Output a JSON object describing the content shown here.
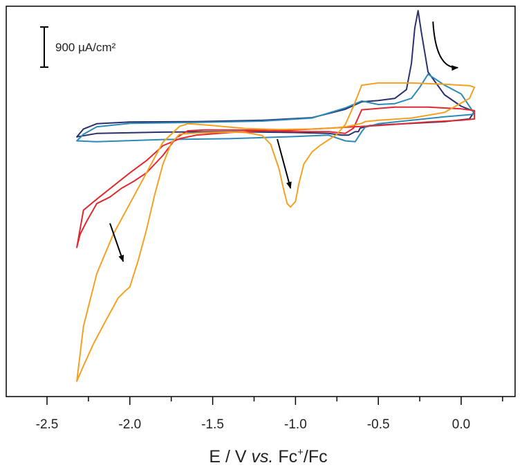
{
  "chart_data": {
    "type": "line",
    "title": "",
    "xlabel_parts": [
      "E / V ",
      "vs.",
      " Fc",
      "+",
      "/Fc"
    ],
    "ylabel": "",
    "xlim": [
      -2.5,
      0.1
    ],
    "x_ticks": [
      -2.5,
      -2.0,
      -1.5,
      -1.0,
      -0.5,
      0.0
    ],
    "x_tick_labels": [
      "-2.5",
      "-2.0",
      "-1.5",
      "-1.0",
      "-0.5",
      "0.0"
    ],
    "y_unit": "µA/cm²",
    "ylim": [
      -6100,
      2800
    ],
    "grid": false,
    "scale_bar": {
      "value": 900,
      "unit": "µA/cm²",
      "label": "900 µA/cm²"
    },
    "series": [
      {
        "color": "#2b2f6e",
        "x": [
          -2.32,
          -2.28,
          -2.2,
          -2.0,
          -1.6,
          -1.2,
          -0.9,
          -0.7,
          -0.6,
          -0.5,
          -0.4,
          -0.33,
          -0.3,
          -0.28,
          -0.26,
          -0.24,
          -0.2,
          -0.1,
          0.0,
          0.08,
          0.05,
          -0.1,
          -0.3,
          -0.55,
          -0.61,
          -0.62,
          -0.64,
          -0.68,
          -0.72,
          -0.8,
          -1.0,
          -1.4,
          -1.8,
          -2.2,
          -2.32
        ],
        "y": [
          -180,
          0,
          120,
          160,
          170,
          200,
          260,
          450,
          620,
          650,
          700,
          900,
          1500,
          2300,
          2700,
          2200,
          1300,
          780,
          520,
          400,
          230,
          170,
          130,
          80,
          20,
          -60,
          -60,
          -140,
          -140,
          -100,
          -80,
          -60,
          -70,
          -100,
          -180
        ]
      },
      {
        "color": "#2c8ab8",
        "x": [
          -2.32,
          -2.28,
          -2.2,
          -2.0,
          -1.6,
          -1.2,
          -0.9,
          -0.7,
          -0.6,
          -0.5,
          -0.4,
          -0.3,
          -0.25,
          -0.2,
          -0.16,
          -0.1,
          0.0,
          0.08,
          0.06,
          -0.1,
          -0.3,
          -0.5,
          -0.58,
          -0.6,
          -0.64,
          -0.7,
          -0.8,
          -1.0,
          -1.4,
          -1.8,
          -2.2,
          -2.32
        ],
        "y": [
          -270,
          -120,
          50,
          130,
          150,
          180,
          250,
          480,
          640,
          560,
          580,
          700,
          950,
          1250,
          1150,
          1000,
          800,
          350,
          330,
          280,
          200,
          120,
          40,
          -60,
          -290,
          -270,
          -140,
          -170,
          -220,
          -240,
          -290,
          -270
        ]
      },
      {
        "color": "#e0282f",
        "x": [
          -2.32,
          -2.3,
          -2.26,
          -2.2,
          -2.12,
          -2.05,
          -1.98,
          -1.9,
          -1.8,
          -1.72,
          -1.65,
          -1.55,
          -1.4,
          -1.2,
          -1.0,
          -0.8,
          -0.7,
          -0.65,
          -0.6,
          -0.4,
          -0.2,
          0.0,
          0.08,
          0.08,
          0.0,
          -0.2,
          -0.5,
          -0.8,
          -1.0,
          -1.2,
          -1.4,
          -1.6,
          -1.7,
          -1.8,
          -1.9,
          -2.0,
          -2.1,
          -2.2,
          -2.28,
          -2.32
        ],
        "y": [
          -2700,
          -2400,
          -2100,
          -1700,
          -1550,
          -1350,
          -1200,
          -1000,
          -600,
          -200,
          -40,
          -20,
          -20,
          -30,
          -60,
          -60,
          -100,
          20,
          440,
          500,
          500,
          460,
          420,
          230,
          200,
          160,
          80,
          20,
          -20,
          -40,
          -80,
          -140,
          -220,
          -380,
          -720,
          -1000,
          -1300,
          -1600,
          -1850,
          -2700
        ]
      },
      {
        "color": "#f5a020",
        "x": [
          -2.32,
          -2.28,
          -2.22,
          -2.15,
          -2.07,
          -2.03,
          -2.0,
          -1.95,
          -1.9,
          -1.85,
          -1.8,
          -1.75,
          -1.7,
          -1.6,
          -1.5,
          -1.4,
          -1.3,
          -1.2,
          -1.15,
          -1.1,
          -1.07,
          -1.05,
          -1.03,
          -1.0,
          -0.98,
          -0.95,
          -0.9,
          -0.85,
          -0.75,
          -0.7,
          -0.65,
          -0.6,
          -0.5,
          -0.3,
          -0.1,
          0.0,
          0.05,
          0.08,
          0.05,
          -0.1,
          -0.3,
          -0.5,
          -0.58,
          -0.6,
          -0.66,
          -0.7,
          -0.75,
          -0.9,
          -1.1,
          -1.3,
          -1.5,
          -1.6,
          -1.65,
          -1.7,
          -1.8,
          -1.9,
          -2.0,
          -2.1,
          -2.2,
          -2.28,
          -2.32
        ],
        "y": [
          -5750,
          -5400,
          -4900,
          -4400,
          -3850,
          -3700,
          -3600,
          -3000,
          -2300,
          -1500,
          -800,
          -320,
          -120,
          -90,
          -80,
          -70,
          -80,
          -150,
          -350,
          -900,
          -1400,
          -1700,
          -1780,
          -1650,
          -1250,
          -800,
          -520,
          -370,
          -120,
          100,
          520,
          1000,
          1050,
          1050,
          1020,
          1000,
          990,
          950,
          700,
          380,
          250,
          200,
          170,
          130,
          80,
          50,
          30,
          0,
          -10,
          10,
          80,
          110,
          120,
          60,
          -300,
          -1000,
          -1700,
          -2400,
          -3300,
          -4500,
          -5750
        ]
      }
    ],
    "annotations": [
      {
        "kind": "arrow",
        "from": [
          -0.17,
          2450
        ],
        "to": [
          -0.02,
          1400
        ],
        "curved": true
      },
      {
        "kind": "arrow",
        "from": [
          -1.11,
          -230
        ],
        "to": [
          -1.03,
          -1350
        ],
        "curved": false
      },
      {
        "kind": "arrow",
        "from": [
          -2.12,
          -2150
        ],
        "to": [
          -2.04,
          -3020
        ],
        "curved": false
      }
    ]
  }
}
